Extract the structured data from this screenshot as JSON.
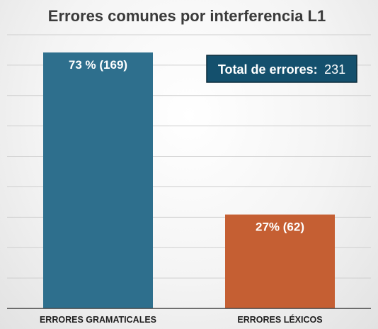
{
  "chart_data": {
    "type": "bar",
    "title": "Errores comunes por interferencia L1",
    "categories": [
      "ERRORES GRAMATICALES",
      "ERRORES LÉXICOS"
    ],
    "values": [
      169,
      62
    ],
    "percentages": [
      73,
      27
    ],
    "data_labels": [
      "73 % (169)",
      "27% (62)"
    ],
    "colors": [
      "#2e6f8d",
      "#c55f33"
    ],
    "ylim": [
      0,
      169
    ],
    "grid": true,
    "xlabel": "",
    "ylabel": ""
  },
  "annotation": {
    "label": "Total de errores:",
    "value": "231",
    "background": "#14506d"
  }
}
